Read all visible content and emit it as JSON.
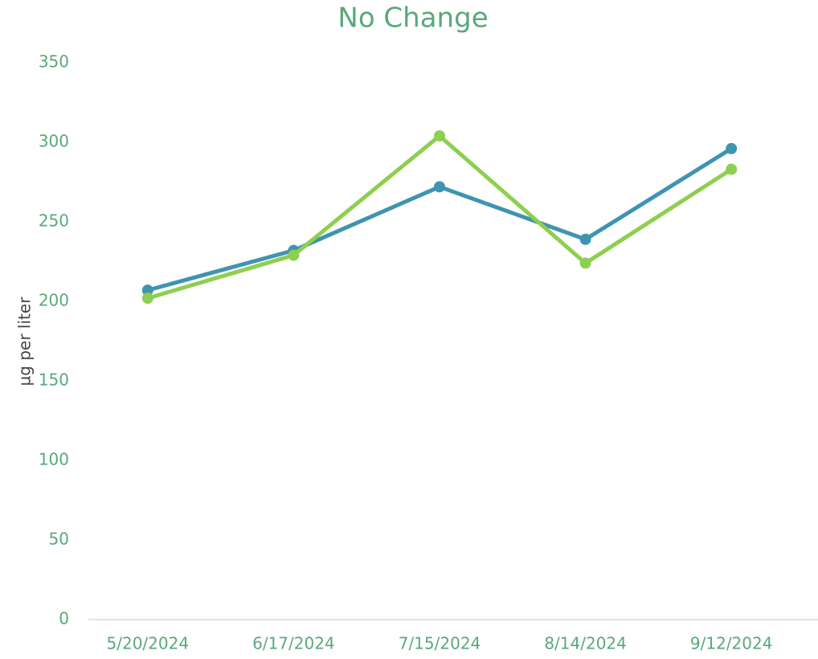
{
  "chart_data": {
    "type": "line",
    "title": "No Change",
    "y_label": "µg per liter",
    "categories": [
      "5/20/2024",
      "6/17/2024",
      "7/15/2024",
      "8/14/2024",
      "9/12/2024"
    ],
    "series": [
      {
        "color": "#3f94b0",
        "values": [
          207,
          232,
          272,
          239,
          296
        ]
      },
      {
        "color": "#8dcf4f",
        "values": [
          202,
          229,
          304,
          224,
          283
        ]
      }
    ],
    "ylim": [
      0,
      350
    ],
    "yticks": [
      0,
      50,
      100,
      150,
      200,
      250,
      300,
      350
    ],
    "grid": false
  }
}
